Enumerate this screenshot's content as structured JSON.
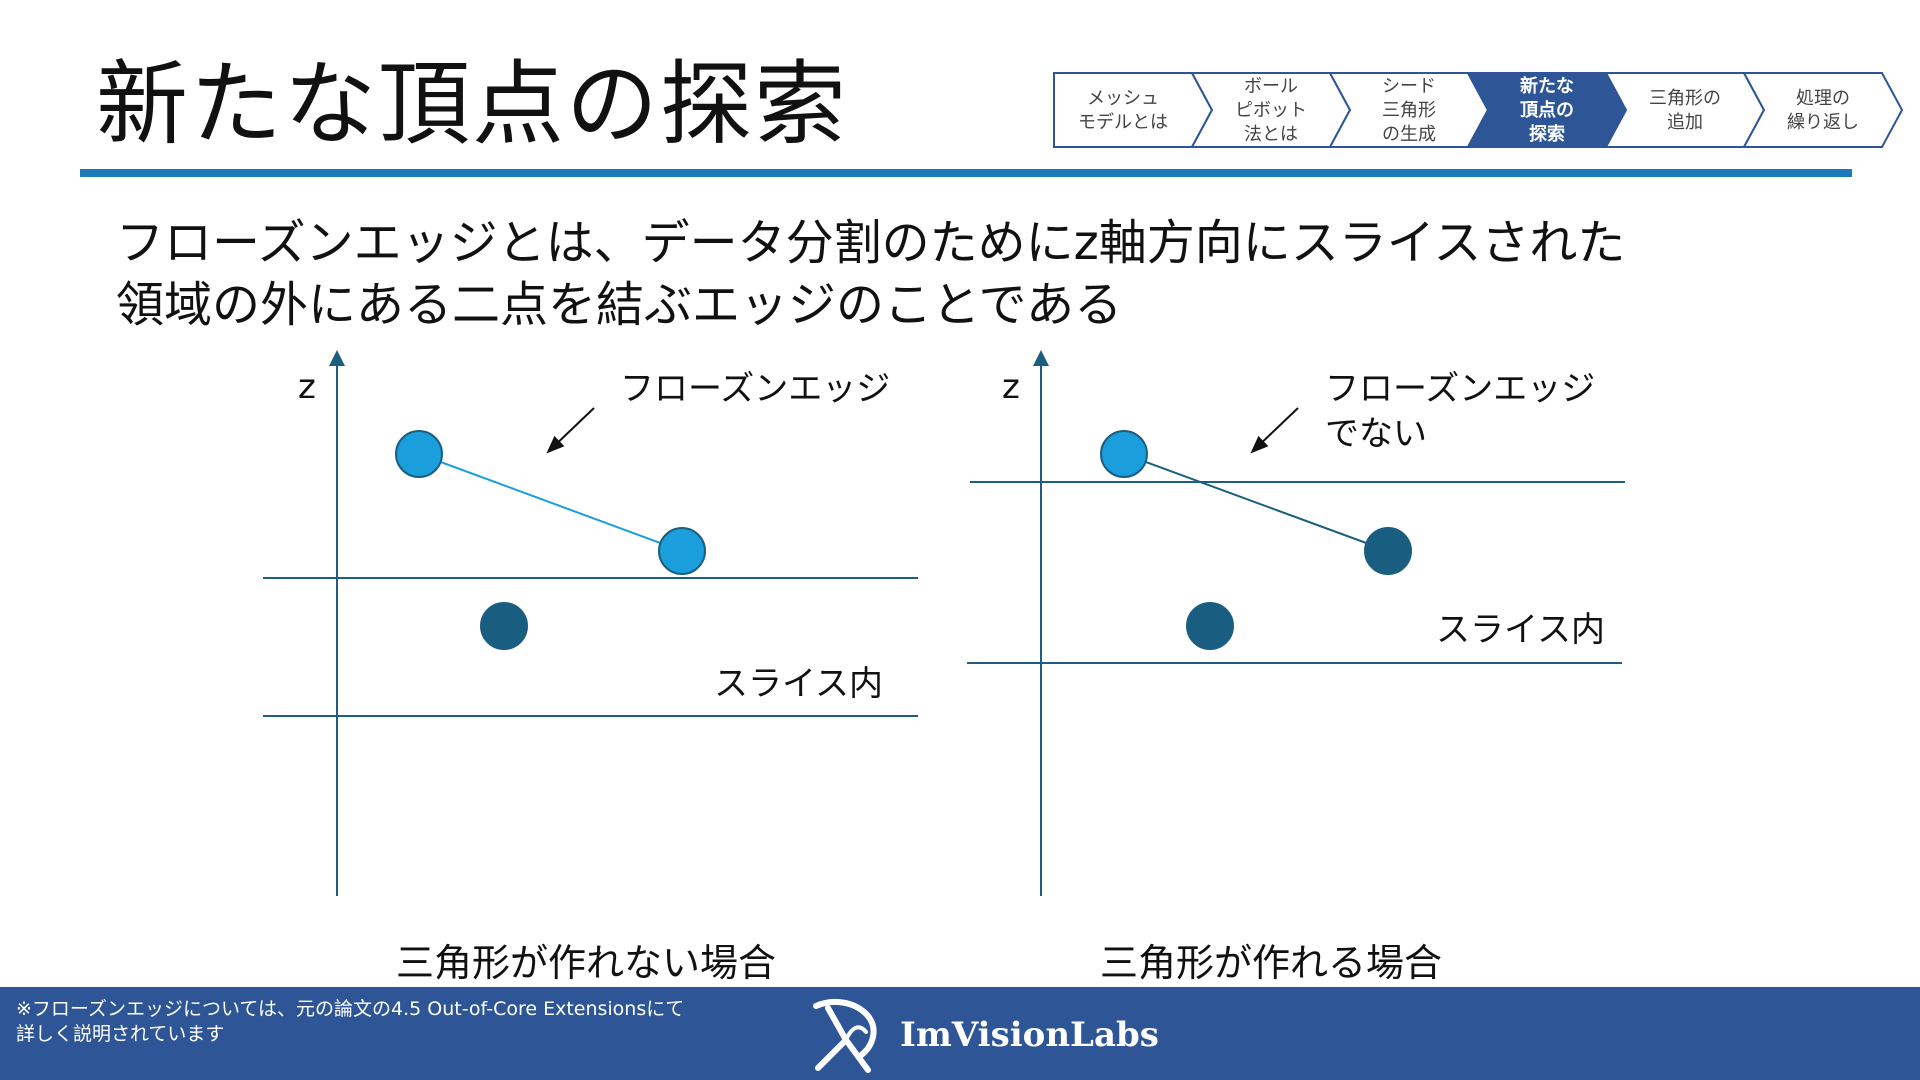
{
  "title": "新たな頂点の探索",
  "progress": {
    "active_color": "#2e5595",
    "steps": [
      {
        "lines": [
          "メッシュ",
          "モデルとは"
        ],
        "active": false
      },
      {
        "lines": [
          "ボール",
          "ピボット",
          "法とは"
        ],
        "active": false
      },
      {
        "lines": [
          "シード",
          "三角形",
          "の生成"
        ],
        "active": false
      },
      {
        "lines": [
          "新たな",
          "頂点の",
          "探索"
        ],
        "active": true
      },
      {
        "lines": [
          "三角形の",
          "追加"
        ],
        "active": false
      },
      {
        "lines": [
          "処理の",
          "繰り返し"
        ],
        "active": false
      }
    ]
  },
  "lead": {
    "line1": "フローズンエッジとは、データ分割のためにz軸方向にスライスされた",
    "line2": "領域の外にある二点を結ぶエッジのことである"
  },
  "colors": {
    "accent": "#1a7cba",
    "axis": "#1c5e80",
    "point_light": "#1a9fdc",
    "point_dark": "#195d80"
  },
  "diagram_left": {
    "axis_label": "z",
    "pointer_label": "フローズンエッジ",
    "slice_label": "スライス内",
    "caption": "三角形が作れない場合"
  },
  "diagram_right": {
    "axis_label": "z",
    "pointer_label_line1": "フローズンエッジ",
    "pointer_label_line2": "でない",
    "slice_label": "スライス内",
    "caption": "三角形が作れる場合"
  },
  "footer": {
    "note_line1": "※フローズンエッジについては、元の論文の4.5 Out-of-Core Extensionsにて",
    "note_line2": "詳しく説明されています",
    "brand": "ImVisionLabs",
    "logo_icon": "imvisionlabs-logo-icon"
  }
}
